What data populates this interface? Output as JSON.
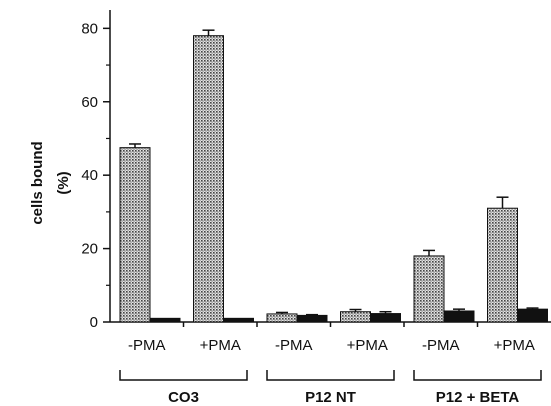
{
  "chart_data": {
    "type": "bar",
    "ylabel": [
      "cells bound",
      "(%)"
    ],
    "xlabel": "",
    "ylim": [
      0,
      85
    ],
    "yticks": [
      0,
      20,
      40,
      60,
      80
    ],
    "groups": [
      {
        "label": "CO3",
        "categories": [
          "-PMA",
          "+PMA"
        ]
      },
      {
        "label": "P12 NT",
        "categories": [
          "-PMA",
          "+PMA"
        ]
      },
      {
        "label": "P12 + BETA",
        "categories": [
          "-PMA",
          "+PMA"
        ]
      }
    ],
    "categories": [
      "-PMA",
      "+PMA",
      "-PMA",
      "+PMA",
      "-PMA",
      "+PMA"
    ],
    "series": [
      {
        "style": "stippled",
        "values": [
          47.5,
          78,
          2.2,
          2.8,
          18,
          31
        ],
        "errors": [
          1,
          1.5,
          0.4,
          0.6,
          1.5,
          3
        ]
      },
      {
        "style": "solid",
        "values": [
          1,
          1,
          1.8,
          2.3,
          3,
          3.5
        ],
        "errors": [
          0,
          0,
          0.2,
          0.5,
          0.5,
          0.3
        ]
      }
    ],
    "colors": {
      "stippled": "#9a9a9a",
      "solid": "#111111",
      "axis": "#111111"
    }
  }
}
